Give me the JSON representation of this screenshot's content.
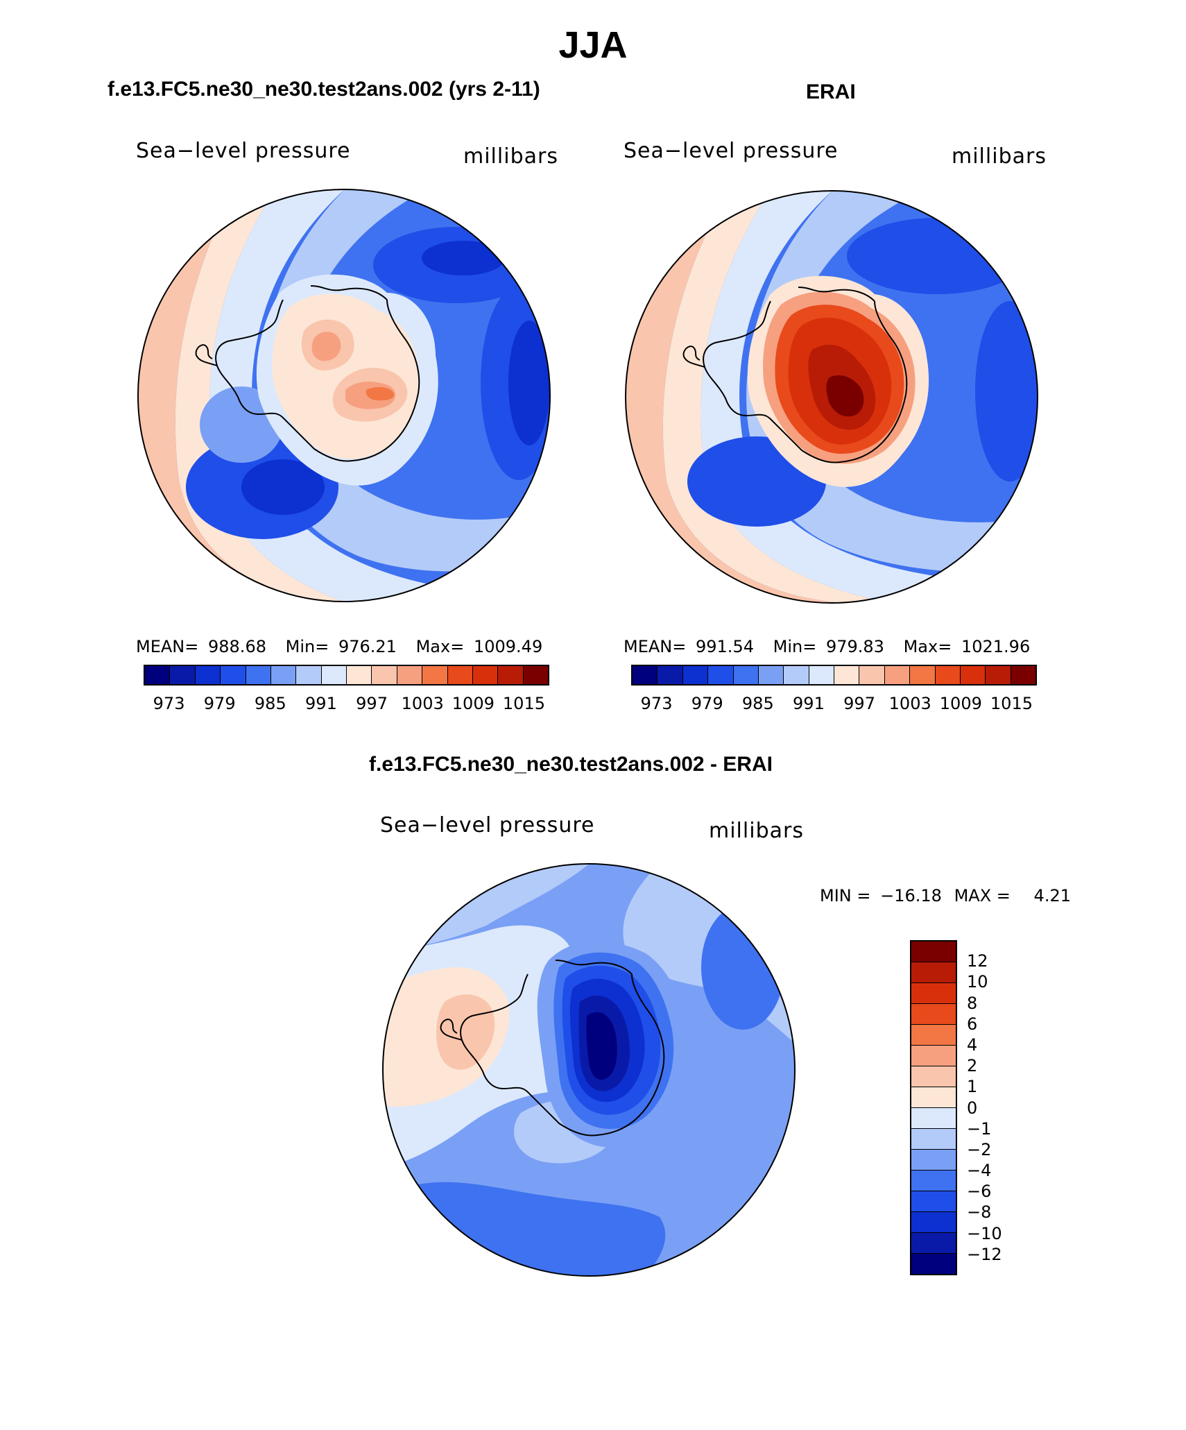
{
  "main_title": "JJA",
  "panels": [
    {
      "title": "f.e13.FC5.ne30_ne30.test2ans.002 (yrs 2-11)",
      "field": "Sea−level pressure",
      "units": "millibars",
      "stats": {
        "mean_label": "MEAN=",
        "mean": "988.68",
        "min_label": "Min=",
        "min": "976.21",
        "max_label": "Max=",
        "max": "1009.49"
      },
      "colorbar_ticks": [
        "973",
        "979",
        "985",
        "991",
        "997",
        "1003",
        "1009",
        "1015"
      ]
    },
    {
      "title": "ERAI",
      "field": "Sea−level pressure",
      "units": "millibars",
      "stats": {
        "mean_label": "MEAN=",
        "mean": "991.54",
        "min_label": "Min=",
        "min": "979.83",
        "max_label": "Max=",
        "max": "1021.96"
      },
      "colorbar_ticks": [
        "973",
        "979",
        "985",
        "991",
        "997",
        "1003",
        "1009",
        "1015"
      ]
    }
  ],
  "diff": {
    "title": "f.e13.FC5.ne30_ne30.test2ans.002 - ERAI",
    "field": "Sea−level pressure",
    "units": "millibars",
    "minmax": {
      "min_label": "MIN =",
      "min": "−16.18",
      "max_label": "MAX =",
      "max": "4.21"
    },
    "colorbar_ticks": [
      "12",
      "10",
      "8",
      "6",
      "4",
      "2",
      "1",
      "0",
      "−1",
      "−2",
      "−4",
      "−6",
      "−8",
      "−10",
      "−12"
    ]
  },
  "colors": {
    "slp_scale": [
      "#00007f",
      "#0a1aa8",
      "#0d30d0",
      "#1f4ee8",
      "#3f72f0",
      "#7aa0f5",
      "#b3cbf9",
      "#dce9fd",
      "#fde6d6",
      "#f9c5ac",
      "#f6a080",
      "#f27744",
      "#e84a1c",
      "#d9300c",
      "#b81c06",
      "#7a0000"
    ],
    "diff_scale": [
      "#7a0000",
      "#b81c06",
      "#d9300c",
      "#e84a1c",
      "#f27744",
      "#f6a080",
      "#f9c5ac",
      "#fde6d6",
      "#dce9fd",
      "#b3cbf9",
      "#7aa0f5",
      "#3f72f0",
      "#1f4ee8",
      "#0d30d0",
      "#0a1aa8",
      "#00007f"
    ]
  }
}
